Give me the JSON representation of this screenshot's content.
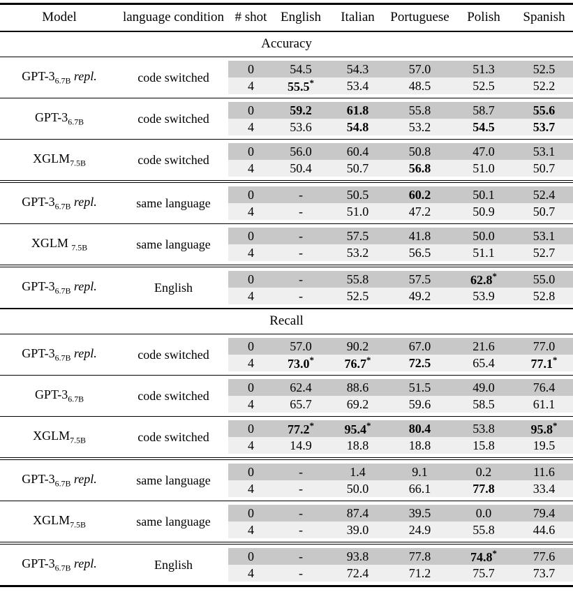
{
  "page": {
    "background_color": "#ffffff",
    "text_color": "#000000",
    "shade_zero_shot_row": "#c8c8c8",
    "shade_four_shot_row": "#efefef"
  },
  "table": {
    "columns": [
      "Model",
      "language condition",
      "# shot",
      "English",
      "Italian",
      "Portuguese",
      "Polish",
      "Spanish"
    ],
    "sections": [
      {
        "title": "Accuracy",
        "groups": [
          {
            "model": {
              "base": "GPT-3",
              "sub": "6.7B",
              "note": "repl."
            },
            "condition": "code switched",
            "rule_before": "none",
            "rows": [
              {
                "shot": "0",
                "cells": [
                  {
                    "v": "54.5"
                  },
                  {
                    "v": "54.3"
                  },
                  {
                    "v": "57.0"
                  },
                  {
                    "v": "51.3"
                  },
                  {
                    "v": "52.5"
                  }
                ]
              },
              {
                "shot": "4",
                "cells": [
                  {
                    "v": "55.5",
                    "bold": true,
                    "star": true
                  },
                  {
                    "v": "53.4"
                  },
                  {
                    "v": "48.5"
                  },
                  {
                    "v": "52.5"
                  },
                  {
                    "v": "52.2"
                  }
                ]
              }
            ]
          },
          {
            "model": {
              "base": "GPT-3",
              "sub": "6.7B",
              "note": ""
            },
            "condition": "code switched",
            "rule_before": "single",
            "rows": [
              {
                "shot": "0",
                "cells": [
                  {
                    "v": "59.2",
                    "bold": true
                  },
                  {
                    "v": "61.8",
                    "bold": true
                  },
                  {
                    "v": "55.8"
                  },
                  {
                    "v": "58.7"
                  },
                  {
                    "v": "55.6",
                    "bold": true
                  }
                ]
              },
              {
                "shot": "4",
                "cells": [
                  {
                    "v": "53.6"
                  },
                  {
                    "v": "54.8",
                    "bold": true
                  },
                  {
                    "v": "53.2"
                  },
                  {
                    "v": "54.5",
                    "bold": true
                  },
                  {
                    "v": "53.7",
                    "bold": true
                  }
                ]
              }
            ]
          },
          {
            "model": {
              "base": "XGLM",
              "sub": "7.5B",
              "note": ""
            },
            "condition": "code switched",
            "rule_before": "single",
            "rows": [
              {
                "shot": "0",
                "cells": [
                  {
                    "v": "56.0"
                  },
                  {
                    "v": "60.4"
                  },
                  {
                    "v": "50.8"
                  },
                  {
                    "v": "47.0"
                  },
                  {
                    "v": "53.1"
                  }
                ]
              },
              {
                "shot": "4",
                "cells": [
                  {
                    "v": "50.4"
                  },
                  {
                    "v": "50.7"
                  },
                  {
                    "v": "56.8",
                    "bold": true
                  },
                  {
                    "v": "51.0"
                  },
                  {
                    "v": "50.7"
                  }
                ]
              }
            ]
          },
          {
            "model": {
              "base": "GPT-3",
              "sub": "6.7B",
              "note": "repl."
            },
            "condition": "same language",
            "rule_before": "double",
            "rows": [
              {
                "shot": "0",
                "cells": [
                  {
                    "v": "-"
                  },
                  {
                    "v": "50.5"
                  },
                  {
                    "v": "60.2",
                    "bold": true
                  },
                  {
                    "v": "50.1"
                  },
                  {
                    "v": "52.4"
                  }
                ]
              },
              {
                "shot": "4",
                "cells": [
                  {
                    "v": "-"
                  },
                  {
                    "v": "51.0"
                  },
                  {
                    "v": "47.2"
                  },
                  {
                    "v": "50.9"
                  },
                  {
                    "v": "50.7"
                  }
                ]
              }
            ]
          },
          {
            "model": {
              "base": "XGLM ",
              "sub": "7.5B",
              "note": ""
            },
            "condition": "same language",
            "rule_before": "single",
            "rows": [
              {
                "shot": "0",
                "cells": [
                  {
                    "v": "-"
                  },
                  {
                    "v": "57.5"
                  },
                  {
                    "v": "41.8"
                  },
                  {
                    "v": "50.0"
                  },
                  {
                    "v": "53.1"
                  }
                ]
              },
              {
                "shot": "4",
                "cells": [
                  {
                    "v": "-"
                  },
                  {
                    "v": "53.2"
                  },
                  {
                    "v": "56.5"
                  },
                  {
                    "v": "51.1"
                  },
                  {
                    "v": "52.7"
                  }
                ]
              }
            ]
          },
          {
            "model": {
              "base": "GPT-3",
              "sub": "6.7B",
              "note": "repl."
            },
            "condition": "English",
            "rule_before": "double",
            "rows": [
              {
                "shot": "0",
                "cells": [
                  {
                    "v": "-"
                  },
                  {
                    "v": "55.8"
                  },
                  {
                    "v": "57.5"
                  },
                  {
                    "v": "62.8",
                    "bold": true,
                    "star": true
                  },
                  {
                    "v": "55.0"
                  }
                ]
              },
              {
                "shot": "4",
                "cells": [
                  {
                    "v": "-"
                  },
                  {
                    "v": "52.5"
                  },
                  {
                    "v": "49.2"
                  },
                  {
                    "v": "53.9"
                  },
                  {
                    "v": "52.8"
                  }
                ]
              }
            ]
          }
        ]
      },
      {
        "title": "Recall",
        "groups": [
          {
            "model": {
              "base": "GPT-3",
              "sub": "6.7B",
              "note": "repl."
            },
            "condition": "code switched",
            "rule_before": "none",
            "rows": [
              {
                "shot": "0",
                "cells": [
                  {
                    "v": "57.0"
                  },
                  {
                    "v": "90.2"
                  },
                  {
                    "v": "67.0"
                  },
                  {
                    "v": "21.6"
                  },
                  {
                    "v": "77.0"
                  }
                ]
              },
              {
                "shot": "4",
                "cells": [
                  {
                    "v": "73.0",
                    "bold": true,
                    "star": true
                  },
                  {
                    "v": "76.7",
                    "bold": true,
                    "star": true
                  },
                  {
                    "v": "72.5",
                    "bold": true
                  },
                  {
                    "v": "65.4"
                  },
                  {
                    "v": "77.1",
                    "bold": true,
                    "star": true
                  }
                ]
              }
            ]
          },
          {
            "model": {
              "base": "GPT-3",
              "sub": "6.7B",
              "note": ""
            },
            "condition": "code switched",
            "rule_before": "single",
            "rows": [
              {
                "shot": "0",
                "cells": [
                  {
                    "v": "62.4"
                  },
                  {
                    "v": "88.6"
                  },
                  {
                    "v": "51.5"
                  },
                  {
                    "v": "49.0"
                  },
                  {
                    "v": "76.4"
                  }
                ]
              },
              {
                "shot": "4",
                "cells": [
                  {
                    "v": "65.7"
                  },
                  {
                    "v": "69.2"
                  },
                  {
                    "v": "59.6"
                  },
                  {
                    "v": "58.5"
                  },
                  {
                    "v": "61.1"
                  }
                ]
              }
            ]
          },
          {
            "model": {
              "base": "XGLM",
              "sub": "7.5B",
              "note": ""
            },
            "condition": "code switched",
            "rule_before": "single",
            "rows": [
              {
                "shot": "0",
                "cells": [
                  {
                    "v": "77.2",
                    "bold": true,
                    "star": true
                  },
                  {
                    "v": "95.4",
                    "bold": true,
                    "star": true
                  },
                  {
                    "v": "80.4",
                    "bold": true
                  },
                  {
                    "v": "53.8"
                  },
                  {
                    "v": "95.8",
                    "bold": true,
                    "star": true
                  }
                ]
              },
              {
                "shot": "4",
                "cells": [
                  {
                    "v": "14.9"
                  },
                  {
                    "v": "18.8"
                  },
                  {
                    "v": "18.8"
                  },
                  {
                    "v": "15.8"
                  },
                  {
                    "v": "19.5"
                  }
                ]
              }
            ]
          },
          {
            "model": {
              "base": "GPT-3",
              "sub": "6.7B",
              "note": "repl."
            },
            "condition": "same language",
            "rule_before": "double",
            "rows": [
              {
                "shot": "0",
                "cells": [
                  {
                    "v": "-"
                  },
                  {
                    "v": "1.4"
                  },
                  {
                    "v": "9.1"
                  },
                  {
                    "v": "0.2"
                  },
                  {
                    "v": "11.6"
                  }
                ]
              },
              {
                "shot": "4",
                "cells": [
                  {
                    "v": "-"
                  },
                  {
                    "v": "50.0"
                  },
                  {
                    "v": "66.1"
                  },
                  {
                    "v": "77.8",
                    "bold": true
                  },
                  {
                    "v": "33.4"
                  }
                ]
              }
            ]
          },
          {
            "model": {
              "base": "XGLM",
              "sub": "7.5B",
              "note": ""
            },
            "condition": "same language",
            "rule_before": "single",
            "rows": [
              {
                "shot": "0",
                "cells": [
                  {
                    "v": "-"
                  },
                  {
                    "v": "87.4"
                  },
                  {
                    "v": "39.5"
                  },
                  {
                    "v": "0.0"
                  },
                  {
                    "v": "79.4"
                  }
                ]
              },
              {
                "shot": "4",
                "cells": [
                  {
                    "v": "-"
                  },
                  {
                    "v": "39.0"
                  },
                  {
                    "v": "24.9"
                  },
                  {
                    "v": "55.8"
                  },
                  {
                    "v": "44.6"
                  }
                ]
              }
            ]
          },
          {
            "model": {
              "base": "GPT-3",
              "sub": "6.7B",
              "note": "repl."
            },
            "condition": "English",
            "rule_before": "double",
            "rows": [
              {
                "shot": "0",
                "cells": [
                  {
                    "v": "-"
                  },
                  {
                    "v": "93.8"
                  },
                  {
                    "v": "77.8"
                  },
                  {
                    "v": "74.8",
                    "bold": true,
                    "star": true
                  },
                  {
                    "v": "77.6"
                  }
                ]
              },
              {
                "shot": "4",
                "cells": [
                  {
                    "v": "-"
                  },
                  {
                    "v": "72.4"
                  },
                  {
                    "v": "71.2"
                  },
                  {
                    "v": "75.7"
                  },
                  {
                    "v": "73.7"
                  }
                ]
              }
            ]
          }
        ]
      }
    ]
  }
}
